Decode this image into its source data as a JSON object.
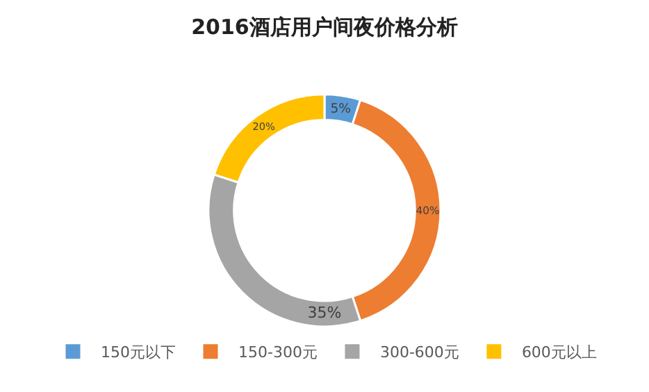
{
  "chart_data": {
    "type": "donut",
    "title": "2016酒店用户间夜价格分析",
    "categories": [
      "150元以下",
      "150-300元",
      "300-600元",
      "600元以上"
    ],
    "values": [
      5,
      40,
      35,
      20
    ],
    "value_labels": [
      "5%",
      "40%",
      "35%",
      "20%"
    ],
    "colors": [
      "#5b9bd5",
      "#ed7d31",
      "#a5a5a5",
      "#ffc000"
    ],
    "legend": "bottom"
  }
}
